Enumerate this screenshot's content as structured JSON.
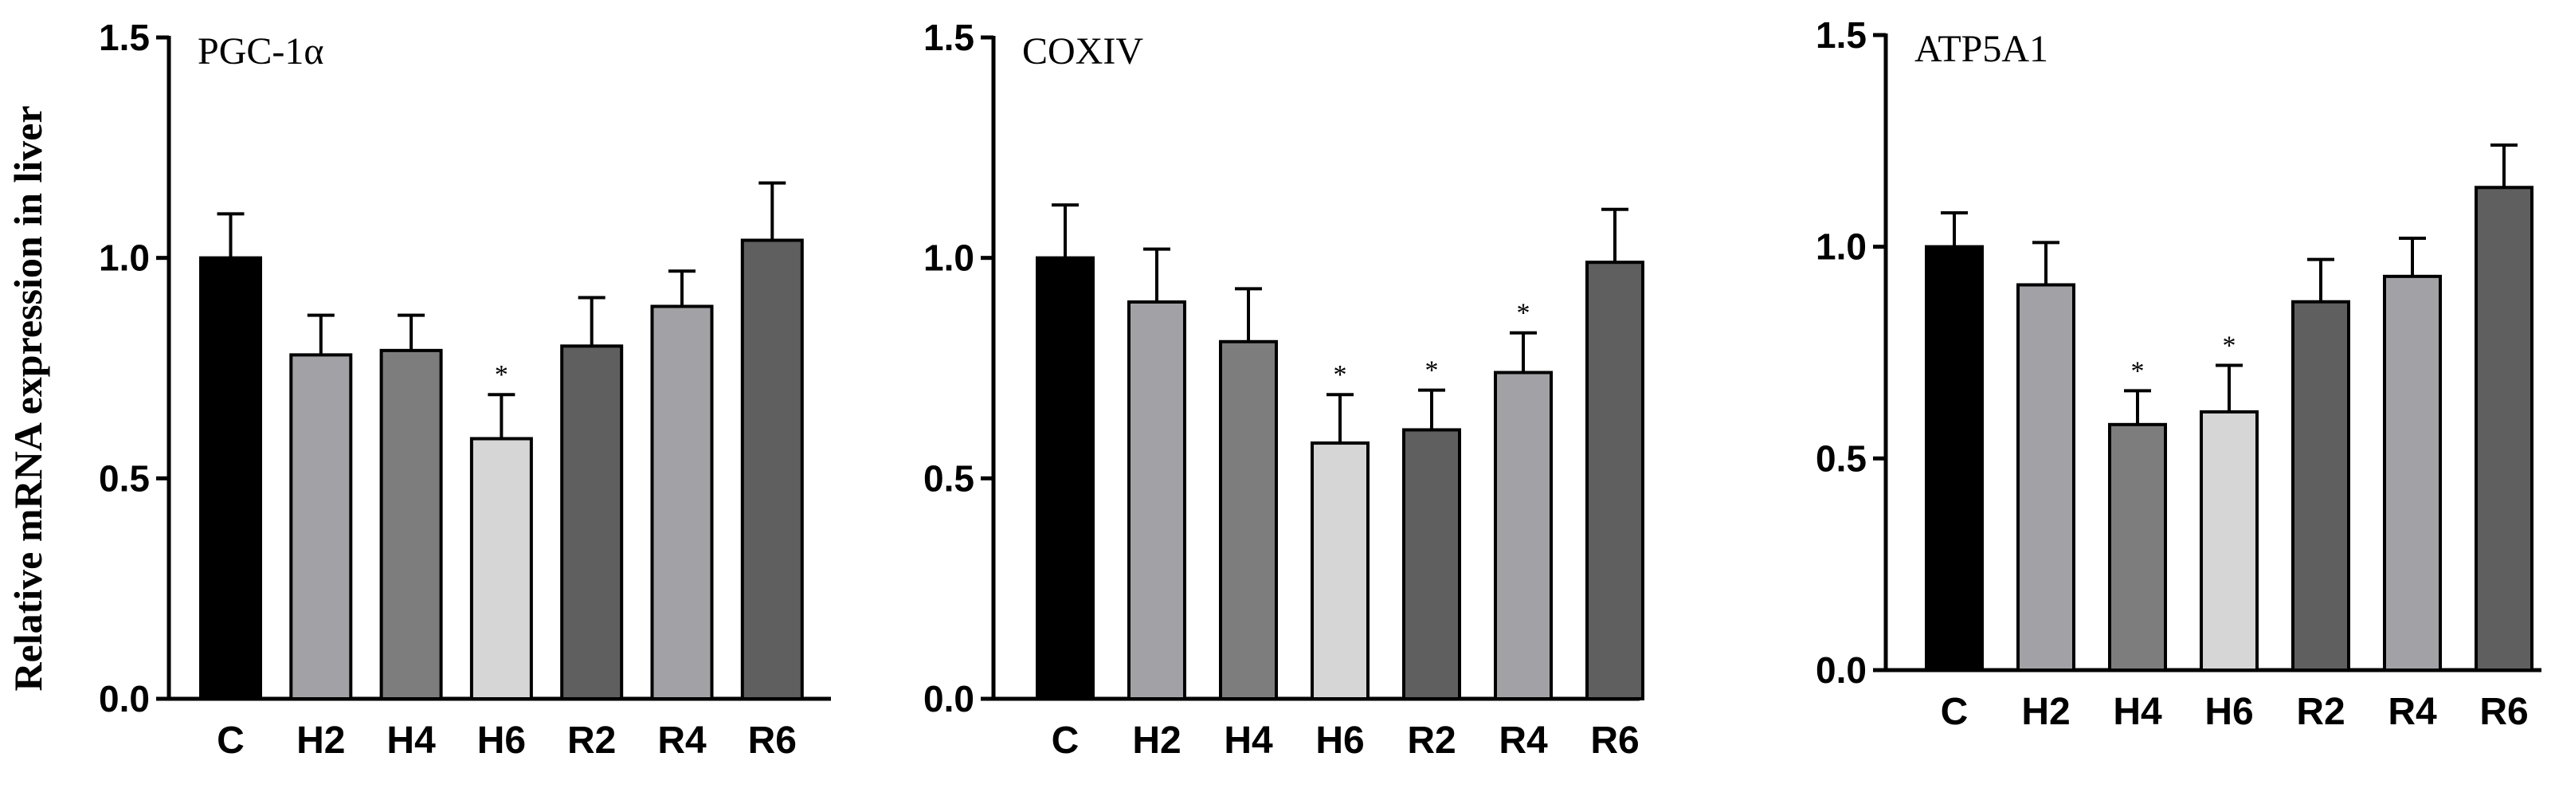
{
  "figure": {
    "ylabel": "Relative mRNA expression in liver"
  },
  "chart_data": [
    {
      "type": "bar",
      "title": "PGC-1α",
      "ylabel": "Relative mRNA expression in liver",
      "ylim": [
        0,
        1.5
      ],
      "yticks": [
        0.0,
        0.5,
        1.0,
        1.5
      ],
      "ytick_labels": [
        "0.0",
        "0.5",
        "1.0",
        "1.5"
      ],
      "categories": [
        "C",
        "H2",
        "H4",
        "H6",
        "R2",
        "R4",
        "R6"
      ],
      "values": [
        1.0,
        0.78,
        0.79,
        0.59,
        0.8,
        0.89,
        1.04
      ],
      "errors": [
        0.1,
        0.09,
        0.08,
        0.1,
        0.11,
        0.08,
        0.13
      ],
      "colors": [
        "#000000",
        "#a2a2a6",
        "#7d7d7d",
        "#d6d6d6",
        "#5f5f5f",
        "#a2a2a6",
        "#5f5f5f"
      ],
      "significance": [
        "",
        "",
        "",
        "*",
        "",
        "",
        ""
      ]
    },
    {
      "type": "bar",
      "title": "COXIV",
      "ylim": [
        0,
        1.5
      ],
      "yticks": [
        0.0,
        0.5,
        1.0,
        1.5
      ],
      "ytick_labels": [
        "0.0",
        "0.5",
        "1.0",
        "1.5"
      ],
      "categories": [
        "C",
        "H2",
        "H4",
        "H6",
        "R2",
        "R4",
        "R6"
      ],
      "values": [
        1.0,
        0.9,
        0.81,
        0.58,
        0.61,
        0.74,
        0.99
      ],
      "errors": [
        0.12,
        0.12,
        0.12,
        0.11,
        0.09,
        0.09,
        0.12
      ],
      "colors": [
        "#000000",
        "#a2a2a6",
        "#7d7d7d",
        "#d6d6d6",
        "#5f5f5f",
        "#a2a2a6",
        "#5f5f5f"
      ],
      "significance": [
        "",
        "",
        "",
        "*",
        "*",
        "*",
        ""
      ]
    },
    {
      "type": "bar",
      "title": "ATP5A1",
      "ylim": [
        0,
        1.5
      ],
      "yticks": [
        0.0,
        0.5,
        1.0,
        1.5
      ],
      "ytick_labels": [
        "0.0",
        "0.5",
        "1.0",
        "1.5"
      ],
      "categories": [
        "C",
        "H2",
        "H4",
        "H6",
        "R2",
        "R4",
        "R6"
      ],
      "values": [
        1.0,
        0.91,
        0.58,
        0.61,
        0.87,
        0.93,
        1.14
      ],
      "errors": [
        0.08,
        0.1,
        0.08,
        0.11,
        0.1,
        0.09,
        0.1
      ],
      "colors": [
        "#000000",
        "#a2a2a6",
        "#7d7d7d",
        "#d6d6d6",
        "#5f5f5f",
        "#a2a2a6",
        "#5f5f5f"
      ],
      "significance": [
        "",
        "",
        "*",
        "*",
        "",
        "",
        ""
      ]
    }
  ]
}
